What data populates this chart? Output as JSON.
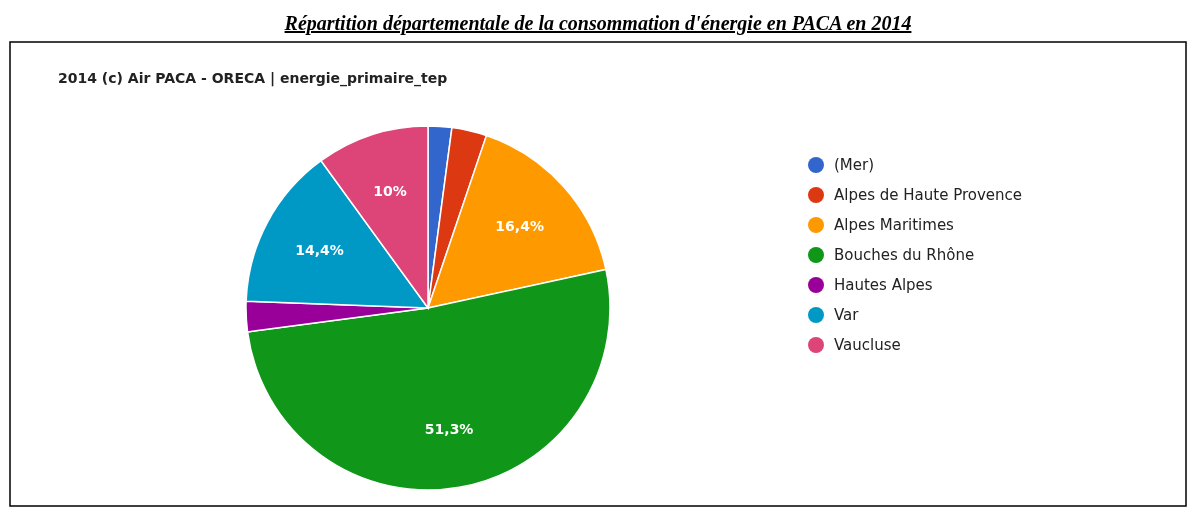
{
  "chart_data": {
    "type": "pie",
    "title": "Répartition départementale de la consommation d'énergie en PACA en 2014",
    "subtitle": "2014 (c) Air PACA - ORECA | energie_primaire_tep",
    "categories": [
      "(Mer)",
      "Alpes de Haute Provence",
      "Alpes Maritimes",
      "Bouches du Rhône",
      "Hautes Alpes",
      "Var",
      "Vaucluse"
    ],
    "values": [
      2.1,
      3.1,
      16.4,
      51.3,
      2.7,
      14.4,
      10
    ],
    "colors": [
      "#3366cc",
      "#dc3912",
      "#ff9900",
      "#109618",
      "#990099",
      "#0099c6",
      "#dd4477"
    ],
    "value_labels": [
      null,
      null,
      "16,4%",
      "51,3%",
      null,
      "14,4%",
      "10%"
    ],
    "legend": "right"
  }
}
